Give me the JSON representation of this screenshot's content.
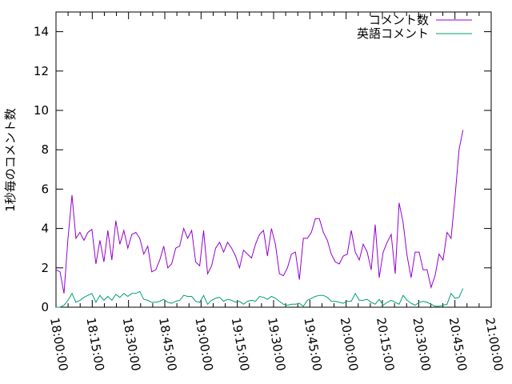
{
  "chart_data": {
    "type": "line",
    "title": "",
    "xlabel": "",
    "ylabel": "1秒毎のコメント数",
    "xlim": [
      "18:00:00",
      "21:00:00"
    ],
    "ylim": [
      0,
      15
    ],
    "x_ticks": [
      "18:00:00",
      "18:15:00",
      "18:30:00",
      "18:45:00",
      "19:00:00",
      "19:15:00",
      "19:30:00",
      "19:45:00",
      "20:00:00",
      "20:15:00",
      "20:30:00",
      "20:45:00",
      "21:00:00"
    ],
    "y_ticks": [
      "0",
      "2",
      "4",
      "6",
      "8",
      "10",
      "12",
      "14"
    ],
    "grid": false,
    "legend_position": "top-right",
    "series_time_span": [
      "18:00:00",
      "20:48:20"
    ],
    "series": [
      {
        "name": "コメント数",
        "color": "#9400d3",
        "values": [
          1.9,
          1.8,
          0.7,
          3.5,
          5.7,
          3.5,
          3.8,
          3.4,
          3.8,
          3.95,
          2.2,
          3.4,
          2.3,
          3.9,
          2.4,
          4.4,
          3.2,
          3.9,
          3.0,
          3.7,
          3.8,
          3.5,
          2.7,
          3.1,
          1.8,
          1.9,
          2.4,
          3.1,
          2.0,
          2.2,
          3.0,
          3.1,
          4.0,
          3.5,
          3.9,
          2.3,
          2.1,
          3.9,
          1.7,
          2.1,
          3.0,
          3.3,
          2.8,
          3.3,
          3.0,
          2.6,
          2.0,
          2.9,
          2.7,
          2.5,
          3.2,
          3.7,
          3.9,
          2.6,
          4.0,
          3.2,
          1.7,
          1.6,
          2.0,
          2.7,
          2.8,
          1.4,
          3.5,
          3.5,
          3.8,
          4.5,
          4.5,
          3.8,
          3.4,
          2.7,
          2.3,
          2.2,
          2.6,
          2.7,
          3.9,
          2.8,
          2.4,
          3.2,
          2.8,
          1.9,
          4.2,
          1.5,
          2.8,
          3.3,
          3.7,
          1.7,
          5.3,
          4.3,
          2.6,
          1.5,
          2.8,
          2.8,
          1.9,
          1.9,
          1.0,
          1.6,
          2.7,
          2.4,
          3.8,
          3.5,
          5.6,
          8.0,
          9.0
        ]
      },
      {
        "name": "英語コメント",
        "color": "#009e73",
        "values": [
          0,
          0,
          0.1,
          0.35,
          0.7,
          0.25,
          0.35,
          0.5,
          0.6,
          0.7,
          0.25,
          0.6,
          0.35,
          0.55,
          0.35,
          0.65,
          0.5,
          0.7,
          0.55,
          0.7,
          0.7,
          0.8,
          0.4,
          0.35,
          0.25,
          0.25,
          0.3,
          0.4,
          0.25,
          0.2,
          0.3,
          0.35,
          0.6,
          0.55,
          0.55,
          0.3,
          0.25,
          0.6,
          0.15,
          0.35,
          0.45,
          0.5,
          0.3,
          0.4,
          0.35,
          0.25,
          0.3,
          0.15,
          0.3,
          0.35,
          0.3,
          0.55,
          0.5,
          0.4,
          0.55,
          0.45,
          0.3,
          0.15,
          0.1,
          0.15,
          0.15,
          0.2,
          0.05,
          0.35,
          0.45,
          0.55,
          0.6,
          0.6,
          0.5,
          0.3,
          0.3,
          0.25,
          0.2,
          0.3,
          0.3,
          0.7,
          0.35,
          0.35,
          0.4,
          0.25,
          0.15,
          0.4,
          0.1,
          0.25,
          0.35,
          0.25,
          0.15,
          0.6,
          0.35,
          0.2,
          0.1,
          0.25,
          0.3,
          0.25,
          0.15,
          0.05,
          0.05,
          0.1,
          0.15,
          0.7,
          0.45,
          0.5,
          0.95
        ]
      }
    ]
  }
}
